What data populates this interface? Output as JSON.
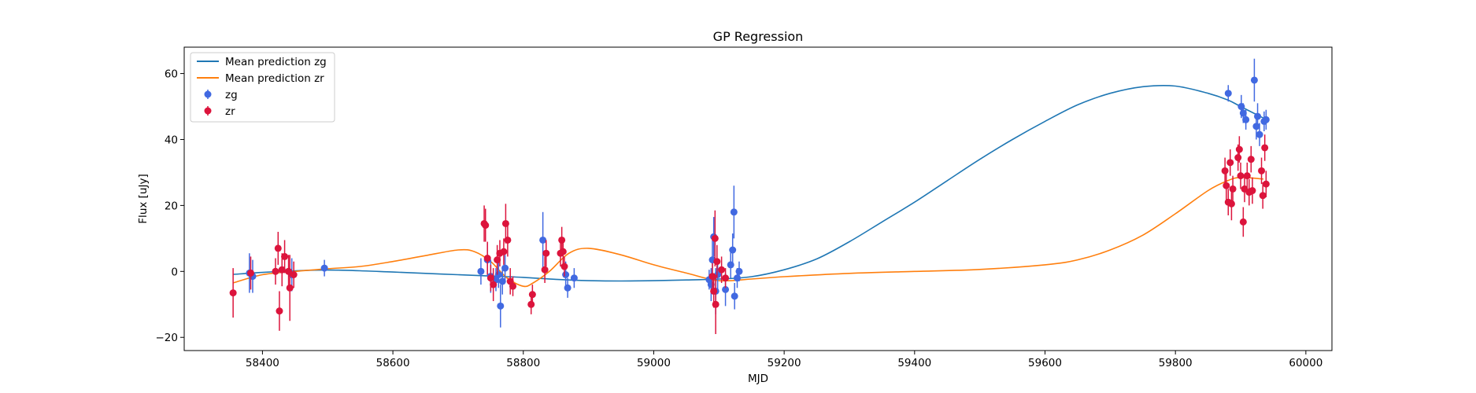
{
  "chart_data": {
    "type": "scatter",
    "title": "GP Regression",
    "xlabel": "MJD",
    "ylabel": "Flux [uJy]",
    "xlim": [
      58280,
      60040
    ],
    "ylim": [
      -24,
      68
    ],
    "xticks": [
      58400,
      58600,
      58800,
      59000,
      59200,
      59400,
      59600,
      59800,
      60000
    ],
    "yticks": [
      -20,
      0,
      20,
      40,
      60
    ],
    "grid": false,
    "legend_position": "top-left",
    "legend": [
      "Mean prediction zg",
      "Mean prediction zr",
      "zg",
      "zr"
    ],
    "colors": {
      "line_zg": "#1f77b4",
      "line_zr": "#ff7f0e",
      "points_zg": "#4169e1",
      "points_zr": "#dc143c"
    },
    "series": [
      {
        "name": "Mean prediction zg",
        "kind": "line",
        "x": [
          58355,
          58400,
          58450,
          58500,
          58550,
          58600,
          58650,
          58700,
          58750,
          58800,
          58850,
          58900,
          58950,
          59000,
          59050,
          59100,
          59150,
          59200,
          59250,
          59300,
          59350,
          59400,
          59450,
          59500,
          59550,
          59600,
          59650,
          59700,
          59750,
          59800,
          59850,
          59880,
          59900,
          59935
        ],
        "y": [
          -0.9,
          -0.3,
          0.2,
          0.4,
          0.2,
          -0.2,
          -0.6,
          -1.0,
          -1.4,
          -1.8,
          -2.4,
          -2.8,
          -2.9,
          -2.8,
          -2.6,
          -2.3,
          -1.6,
          0.5,
          3.8,
          9.0,
          15.0,
          21.0,
          27.5,
          34.0,
          40.0,
          45.5,
          50.5,
          54.0,
          56.0,
          56.2,
          54.0,
          52.0,
          50.0,
          46.5
        ]
      },
      {
        "name": "Mean prediction zr",
        "kind": "line",
        "x": [
          58355,
          58400,
          58450,
          58500,
          58550,
          58600,
          58650,
          58700,
          58725,
          58750,
          58775,
          58800,
          58815,
          58840,
          58870,
          58900,
          58950,
          59000,
          59050,
          59100,
          59150,
          59200,
          59300,
          59400,
          59500,
          59600,
          59650,
          59700,
          59750,
          59800,
          59850,
          59880,
          59900,
          59935
        ],
        "y": [
          -3.5,
          -1.0,
          0.0,
          0.8,
          1.5,
          3.0,
          4.8,
          6.5,
          6.0,
          3.0,
          -2.0,
          -4.5,
          -3.5,
          0.0,
          5.5,
          7.0,
          5.0,
          2.0,
          -0.5,
          -2.8,
          -2.3,
          -1.6,
          -0.6,
          0.0,
          0.6,
          2.0,
          3.5,
          6.5,
          11.0,
          17.5,
          24.5,
          27.5,
          28.5,
          28.0
        ]
      },
      {
        "name": "zg",
        "kind": "errorbar",
        "points": [
          {
            "x": 58380,
            "y": -0.5,
            "err": 6.0
          },
          {
            "x": 58385,
            "y": -1.5,
            "err": 5.0
          },
          {
            "x": 58430,
            "y": 0.5,
            "err": 4.0
          },
          {
            "x": 58445,
            "y": -1.0,
            "err": 5.0
          },
          {
            "x": 58495,
            "y": 1.0,
            "err": 2.5
          },
          {
            "x": 58735,
            "y": 0.0,
            "err": 4.0
          },
          {
            "x": 58745,
            "y": 3.5,
            "err": 5.0
          },
          {
            "x": 58750,
            "y": -1.5,
            "err": 5.0
          },
          {
            "x": 58758,
            "y": -2.5,
            "err": 3.5
          },
          {
            "x": 58762,
            "y": -1.0,
            "err": 4.0
          },
          {
            "x": 58765,
            "y": -10.5,
            "err": 6.5
          },
          {
            "x": 58768,
            "y": -3.0,
            "err": 4.0
          },
          {
            "x": 58772,
            "y": 1.0,
            "err": 4.0
          },
          {
            "x": 58830,
            "y": 9.5,
            "err": 8.5
          },
          {
            "x": 58865,
            "y": -1.0,
            "err": 4.0
          },
          {
            "x": 58868,
            "y": -5.0,
            "err": 3.0
          },
          {
            "x": 58878,
            "y": -2.0,
            "err": 3.0
          },
          {
            "x": 59085,
            "y": -2.5,
            "err": 3.0
          },
          {
            "x": 59088,
            "y": -4.0,
            "err": 5.0
          },
          {
            "x": 59090,
            "y": 3.5,
            "err": 6.0
          },
          {
            "x": 59092,
            "y": 10.5,
            "err": 6.0
          },
          {
            "x": 59095,
            "y": -6.0,
            "err": 7.0
          },
          {
            "x": 59098,
            "y": -1.0,
            "err": 4.5
          },
          {
            "x": 59110,
            "y": -5.5,
            "err": 5.0
          },
          {
            "x": 59118,
            "y": 2.0,
            "err": 4.0
          },
          {
            "x": 59121,
            "y": 6.5,
            "err": 5.0
          },
          {
            "x": 59123,
            "y": 18.0,
            "err": 8.0
          },
          {
            "x": 59124,
            "y": -7.5,
            "err": 4.0
          },
          {
            "x": 59128,
            "y": -2.0,
            "err": 3.0
          },
          {
            "x": 59131,
            "y": 0.0,
            "err": 3.0
          },
          {
            "x": 59881,
            "y": 54.0,
            "err": 2.5
          },
          {
            "x": 59901,
            "y": 50.0,
            "err": 3.5
          },
          {
            "x": 59904,
            "y": 48.0,
            "err": 3.0
          },
          {
            "x": 59908,
            "y": 46.0,
            "err": 3.0
          },
          {
            "x": 59921,
            "y": 58.0,
            "err": 6.5
          },
          {
            "x": 59924,
            "y": 44.0,
            "err": 4.0
          },
          {
            "x": 59926,
            "y": 47.0,
            "err": 4.0
          },
          {
            "x": 59929,
            "y": 41.5,
            "err": 3.5
          },
          {
            "x": 59936,
            "y": 45.5,
            "err": 3.0
          },
          {
            "x": 59939,
            "y": 46.0,
            "err": 3.0
          }
        ]
      },
      {
        "name": "zr",
        "kind": "errorbar",
        "points": [
          {
            "x": 58355,
            "y": -6.5,
            "err": 7.5
          },
          {
            "x": 58382,
            "y": -0.5,
            "err": 5.0
          },
          {
            "x": 58420,
            "y": 0.0,
            "err": 4.0
          },
          {
            "x": 58424,
            "y": 7.0,
            "err": 5.0
          },
          {
            "x": 58426,
            "y": -12.0,
            "err": 6.0
          },
          {
            "x": 58430,
            "y": 0.5,
            "err": 5.0
          },
          {
            "x": 58434,
            "y": 4.5,
            "err": 5.0
          },
          {
            "x": 58440,
            "y": 0.0,
            "err": 5.0
          },
          {
            "x": 58442,
            "y": -5.0,
            "err": 10.0
          },
          {
            "x": 58448,
            "y": -1.0,
            "err": 4.0
          },
          {
            "x": 58740,
            "y": 14.5,
            "err": 5.5
          },
          {
            "x": 58742,
            "y": 14.0,
            "err": 5.0
          },
          {
            "x": 58745,
            "y": 4.0,
            "err": 5.0
          },
          {
            "x": 58750,
            "y": -2.0,
            "err": 4.0
          },
          {
            "x": 58754,
            "y": -4.0,
            "err": 5.0
          },
          {
            "x": 58760,
            "y": 3.5,
            "err": 4.5
          },
          {
            "x": 58764,
            "y": 5.5,
            "err": 4.0
          },
          {
            "x": 58770,
            "y": 6.0,
            "err": 4.0
          },
          {
            "x": 58773,
            "y": 14.5,
            "err": 6.0
          },
          {
            "x": 58776,
            "y": 9.5,
            "err": 5.0
          },
          {
            "x": 58780,
            "y": -3.0,
            "err": 4.0
          },
          {
            "x": 58784,
            "y": -4.5,
            "err": 3.0
          },
          {
            "x": 58812,
            "y": -10.0,
            "err": 3.0
          },
          {
            "x": 58814,
            "y": -7.0,
            "err": 3.0
          },
          {
            "x": 58833,
            "y": 0.5,
            "err": 4.0
          },
          {
            "x": 58835,
            "y": 5.5,
            "err": 4.0
          },
          {
            "x": 58857,
            "y": 5.5,
            "err": 4.0
          },
          {
            "x": 58859,
            "y": 9.5,
            "err": 4.0
          },
          {
            "x": 58861,
            "y": 6.0,
            "err": 4.0
          },
          {
            "x": 58863,
            "y": 1.5,
            "err": 3.0
          },
          {
            "x": 59090,
            "y": -1.5,
            "err": 4.0
          },
          {
            "x": 59092,
            "y": -6.0,
            "err": 5.0
          },
          {
            "x": 59094,
            "y": 10.0,
            "err": 8.5
          },
          {
            "x": 59095,
            "y": -10.0,
            "err": 9.0
          },
          {
            "x": 59097,
            "y": 3.0,
            "err": 5.0
          },
          {
            "x": 59104,
            "y": 0.5,
            "err": 4.0
          },
          {
            "x": 59110,
            "y": -2.0,
            "err": 3.0
          },
          {
            "x": 59876,
            "y": 30.5,
            "err": 4.0
          },
          {
            "x": 59878,
            "y": 26.0,
            "err": 5.0
          },
          {
            "x": 59881,
            "y": 21.0,
            "err": 4.0
          },
          {
            "x": 59884,
            "y": 33.0,
            "err": 4.0
          },
          {
            "x": 59886,
            "y": 20.5,
            "err": 5.0
          },
          {
            "x": 59888,
            "y": 25.0,
            "err": 4.0
          },
          {
            "x": 59896,
            "y": 34.5,
            "err": 4.0
          },
          {
            "x": 59898,
            "y": 37.0,
            "err": 4.0
          },
          {
            "x": 59900,
            "y": 29.0,
            "err": 4.0
          },
          {
            "x": 59904,
            "y": 15.0,
            "err": 4.5
          },
          {
            "x": 59906,
            "y": 25.0,
            "err": 4.0
          },
          {
            "x": 59910,
            "y": 29.0,
            "err": 4.0
          },
          {
            "x": 59913,
            "y": 24.0,
            "err": 4.0
          },
          {
            "x": 59916,
            "y": 34.0,
            "err": 4.0
          },
          {
            "x": 59918,
            "y": 24.5,
            "err": 4.0
          },
          {
            "x": 59932,
            "y": 30.5,
            "err": 4.0
          },
          {
            "x": 59934,
            "y": 23.0,
            "err": 4.0
          },
          {
            "x": 59937,
            "y": 37.5,
            "err": 4.0
          },
          {
            "x": 59939,
            "y": 26.5,
            "err": 4.0
          }
        ]
      }
    ]
  }
}
